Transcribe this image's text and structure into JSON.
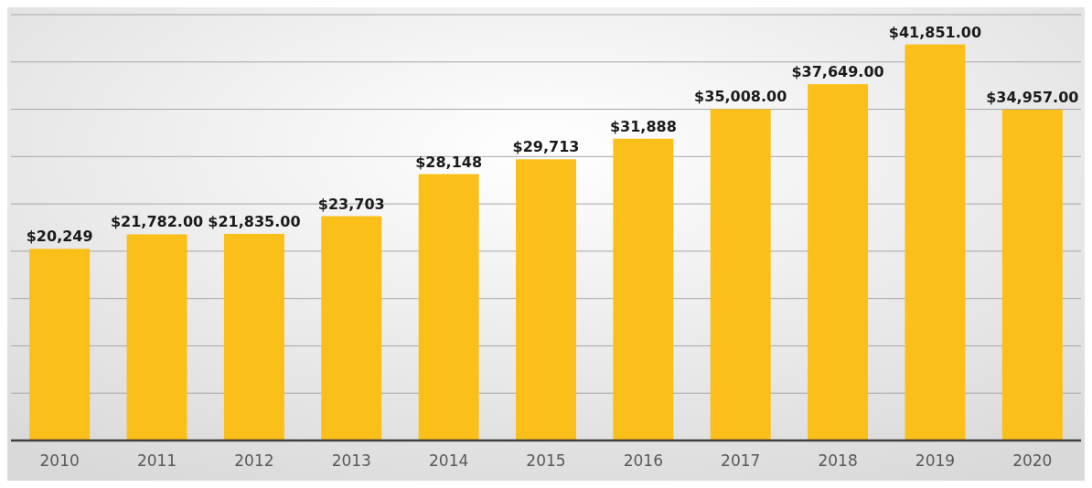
{
  "chart_data": {
    "type": "bar",
    "categories": [
      "2010",
      "2011",
      "2012",
      "2013",
      "2014",
      "2015",
      "2016",
      "2017",
      "2018",
      "2019",
      "2020"
    ],
    "values": [
      20249,
      21782,
      21835,
      23703,
      28148,
      29713,
      31888,
      35008,
      37649,
      41851,
      34957
    ],
    "value_labels": [
      "$20,249",
      "$21,782.00",
      "$21,835.00",
      "$23,703",
      "$28,148",
      "$29,713",
      "$31,888",
      "$35,008.00",
      "$37,649.00",
      "$41,851.00",
      "$34,957.00"
    ],
    "color": "#fbbf1a",
    "ylim": [
      0,
      45000
    ],
    "yticks": [
      {
        "value": 0,
        "label": null
      },
      {
        "value": 5000,
        "label": null
      },
      {
        "value": 10000,
        "label": null
      },
      {
        "value": 15000,
        "label": null
      },
      {
        "value": 20000,
        "label": null
      },
      {
        "value": 25000,
        "label": null
      },
      {
        "value": 30000,
        "label": null
      },
      {
        "value": 35000,
        "label": null
      },
      {
        "value": 40000,
        "label": null
      },
      {
        "value": 45000,
        "label": null
      }
    ],
    "grid": "y",
    "tick_labels": "x"
  }
}
